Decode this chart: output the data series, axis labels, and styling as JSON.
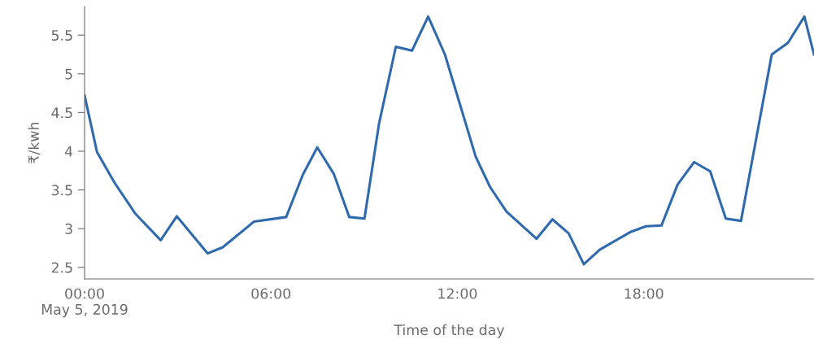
{
  "chart_data": {
    "type": "line",
    "xlabel": "Time of the day",
    "ylabel": "₹/kwh",
    "x": [
      0,
      0.4,
      0.97,
      1.64,
      2.45,
      2.97,
      3.96,
      4.45,
      5.45,
      6.49,
      7.03,
      7.49,
      8.02,
      8.52,
      9.01,
      9.48,
      10.02,
      10.54,
      11.06,
      11.6,
      12.59,
      13.05,
      13.58,
      14.55,
      15.06,
      15.58,
      16.07,
      16.59,
      17.59,
      18.07,
      18.57,
      19.09,
      19.62,
      20.14,
      20.64,
      21.13,
      22.12,
      22.64,
      23.17,
      23.48
    ],
    "series": [
      {
        "color": "#2e6aad",
        "values": [
          4.72,
          3.99,
          3.59,
          3.19,
          2.85,
          3.16,
          2.68,
          2.76,
          3.09,
          3.15,
          3.7,
          4.05,
          3.71,
          3.15,
          3.13,
          4.36,
          5.35,
          5.3,
          5.74,
          5.25,
          3.93,
          3.54,
          3.22,
          2.87,
          3.12,
          2.94,
          2.54,
          2.73,
          2.96,
          3.03,
          3.04,
          3.57,
          3.86,
          3.74,
          3.13,
          3.1,
          5.25,
          5.4,
          5.74,
          5.25
        ]
      }
    ],
    "xlim": [
      0,
      23.48
    ],
    "xticks": [
      {
        "value": 0,
        "label": "00:00\nMay 5, 2019"
      },
      {
        "value": 6,
        "label": "06:00"
      },
      {
        "value": 12,
        "label": "12:00"
      },
      {
        "value": 18,
        "label": "18:00"
      }
    ],
    "ylim": [
      2.35,
      5.87
    ],
    "yticks": [
      2.5,
      3,
      3.5,
      4,
      4.5,
      5,
      5.5
    ]
  }
}
